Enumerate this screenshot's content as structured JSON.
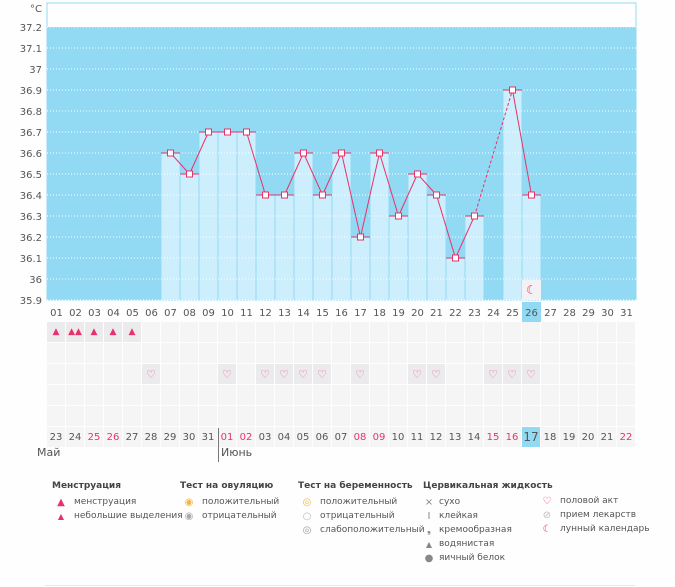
{
  "unit_label": "°C",
  "chart_data": {
    "type": "line",
    "ylabel": "°C",
    "ylim": [
      35.9,
      37.2
    ],
    "yticks": [
      "37.2",
      "37.1",
      "37",
      "36.9",
      "36.8",
      "36.7",
      "36.6",
      "36.5",
      "36.4",
      "36.3",
      "36.2",
      "36.1",
      "36",
      "35.9"
    ],
    "x": [
      "01",
      "02",
      "03",
      "04",
      "05",
      "06",
      "07",
      "08",
      "09",
      "10",
      "11",
      "12",
      "13",
      "14",
      "15",
      "16",
      "17",
      "18",
      "19",
      "20",
      "21",
      "22",
      "23",
      "24",
      "25",
      "26",
      "27",
      "28",
      "29",
      "30",
      "31"
    ],
    "series": [
      {
        "name": "temperature",
        "values": [
          null,
          null,
          null,
          null,
          null,
          null,
          36.6,
          36.5,
          36.7,
          36.7,
          36.7,
          36.4,
          36.4,
          36.6,
          36.4,
          36.6,
          36.2,
          36.6,
          36.3,
          36.5,
          36.4,
          36.1,
          36.3,
          null,
          36.9,
          36.4,
          null,
          null,
          null,
          null,
          null
        ]
      }
    ],
    "highlight_day": "26",
    "colors": {
      "plot_bg": "#92d9f3",
      "bar": "#cdeefc",
      "line": "#e8336a"
    }
  },
  "calendar_dates": [
    "23",
    "24",
    "25",
    "26",
    "27",
    "28",
    "29",
    "30",
    "31",
    "01",
    "02",
    "03",
    "04",
    "05",
    "06",
    "07",
    "08",
    "09",
    "10",
    "11",
    "12",
    "13",
    "14",
    "15",
    "16",
    "17",
    "18",
    "19",
    "20",
    "21",
    "22"
  ],
  "red_dates": [
    2,
    3,
    9,
    10,
    16,
    17,
    23,
    24,
    30
  ],
  "today_index": 25,
  "menstruation": [
    1,
    2,
    1,
    1,
    1,
    0,
    0,
    0,
    0,
    0,
    0,
    0,
    0,
    0,
    0,
    0,
    0,
    0,
    0,
    0,
    0,
    0,
    0,
    0,
    0,
    0,
    0,
    0,
    0,
    0,
    0
  ],
  "intercourse_days": [
    5,
    9,
    11,
    12,
    13,
    14,
    16,
    19,
    20,
    23,
    24,
    25
  ],
  "months": {
    "may": "Май",
    "june": "Июнь"
  },
  "legend": {
    "menstruation": {
      "title": "Менструация",
      "items": [
        "менструация",
        "небольшие выделения"
      ]
    },
    "ovulation_test": {
      "title": "Тест на овуляцию",
      "items": [
        "положительный",
        "отрицательный"
      ]
    },
    "pregnancy_test": {
      "title": "Тест на беременность",
      "items": [
        "положительный",
        "отрицательный",
        "слабоположительный"
      ]
    },
    "cervical_fluid": {
      "title": "Цервикальная жидкость",
      "items": [
        "сухо",
        "клейкая",
        "кремообразная",
        "водянистая",
        "яичный белок"
      ]
    },
    "other": {
      "items": [
        "половой акт",
        "прием лекарств",
        "лунный календарь"
      ]
    }
  }
}
